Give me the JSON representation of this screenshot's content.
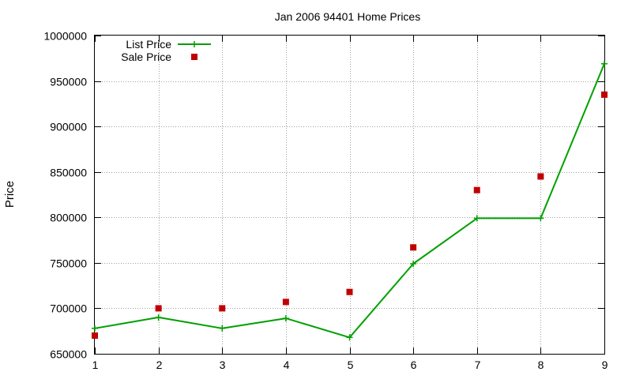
{
  "chart_data": {
    "type": "line",
    "title": "Jan 2006 94401 Home Prices",
    "xlabel": "",
    "ylabel": "Price",
    "x": [
      1,
      2,
      3,
      4,
      5,
      6,
      7,
      8,
      9
    ],
    "xlim": [
      1,
      9
    ],
    "ylim": [
      650000,
      1000000
    ],
    "x_ticks": [
      1,
      2,
      3,
      4,
      5,
      6,
      7,
      8,
      9
    ],
    "y_ticks": [
      650000,
      700000,
      750000,
      800000,
      850000,
      900000,
      950000,
      1000000
    ],
    "grid": true,
    "legend_position": "top-left",
    "series": [
      {
        "name": "List Price",
        "style": "line-with-plus-markers",
        "color": "#00a000",
        "values": [
          678000,
          690000,
          678000,
          689000,
          668000,
          749000,
          799000,
          799000,
          969000
        ]
      },
      {
        "name": "Sale Price",
        "style": "square-points",
        "color": "#c00000",
        "values": [
          670000,
          700000,
          700000,
          707000,
          718000,
          767000,
          830000,
          845000,
          935000
        ]
      }
    ]
  }
}
